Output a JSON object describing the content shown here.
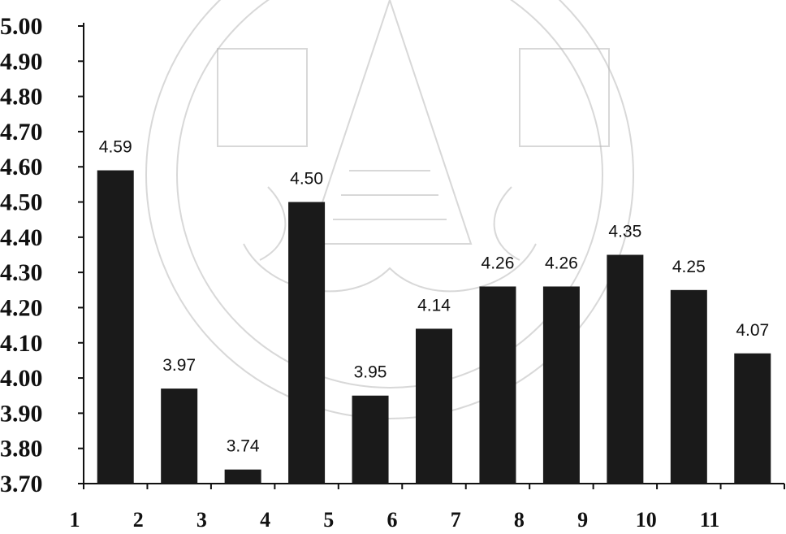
{
  "chart_data": {
    "type": "bar",
    "categories": [
      "1",
      "2",
      "3",
      "4",
      "5",
      "6",
      "7",
      "8",
      "9",
      "10",
      "11"
    ],
    "values": [
      4.59,
      3.97,
      3.74,
      4.5,
      3.95,
      4.14,
      4.26,
      4.26,
      4.35,
      4.25,
      4.07
    ],
    "value_labels": [
      "4.59",
      "3.97",
      "3.74",
      "4.50",
      "3.95",
      "4.14",
      "4.26",
      "4.26",
      "4.35",
      "4.25",
      "4.07"
    ],
    "y_ticks": [
      "3.70",
      "3.80",
      "3.90",
      "4.00",
      "4.10",
      "4.20",
      "4.30",
      "4.40",
      "4.50",
      "4.60",
      "4.70",
      "4.80",
      "4.90",
      "5.00"
    ],
    "ylim": [
      3.7,
      5.0
    ],
    "title": "",
    "xlabel": "",
    "ylabel": "",
    "grid": false,
    "legend": "none",
    "bar_color": "#1a1a1a",
    "axis_color": "#111111"
  },
  "watermark": {
    "kind": "university-seal",
    "color": "#b8b8b8"
  }
}
